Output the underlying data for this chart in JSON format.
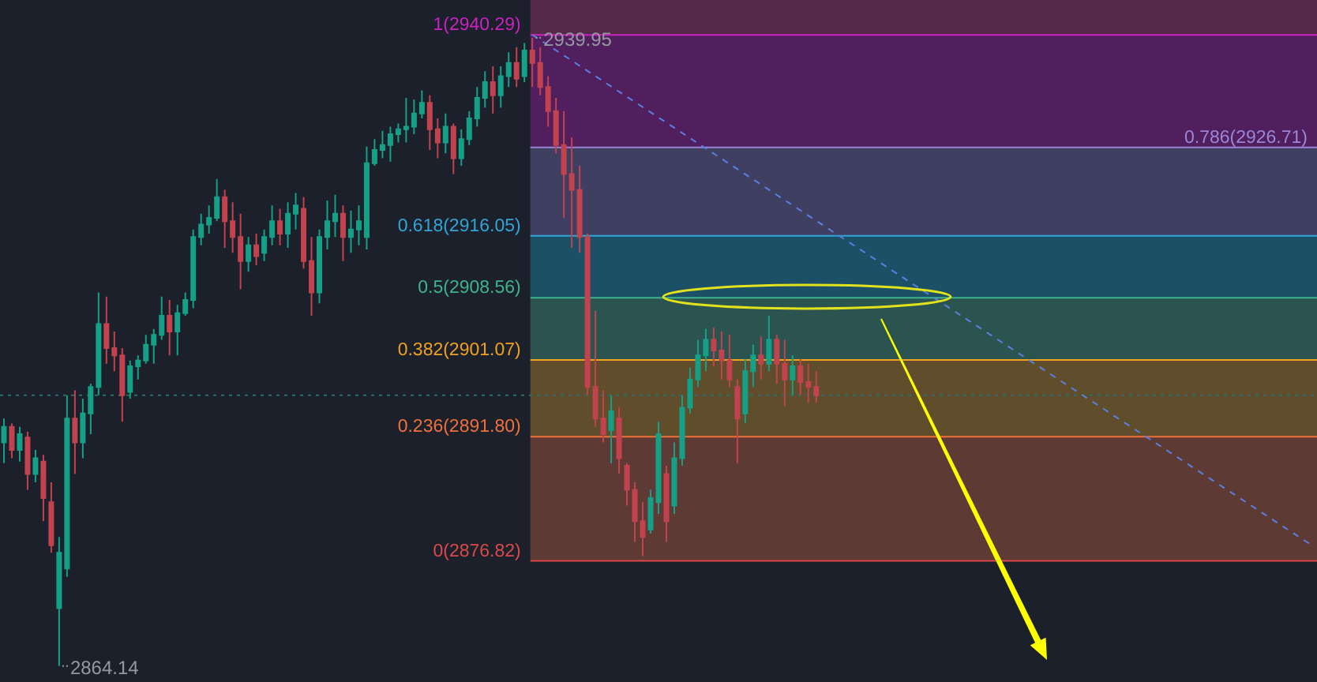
{
  "chart_data": {
    "type": "candlestick",
    "categories": [
      null,
      null,
      null,
      null,
      null,
      null,
      null,
      null,
      null,
      null,
      null,
      null,
      null,
      null,
      null,
      null,
      null,
      null,
      null,
      null,
      null,
      null,
      null,
      null,
      null,
      null,
      null,
      null,
      null,
      null,
      null,
      null,
      null,
      null,
      null,
      null,
      null,
      null,
      null,
      null,
      null,
      null,
      null,
      null,
      null,
      null,
      null,
      null,
      null,
      null,
      null,
      null,
      null,
      null,
      null,
      null,
      null,
      null,
      null,
      null,
      null,
      null,
      null,
      null,
      null,
      null,
      null,
      null,
      null,
      null,
      null,
      null,
      null,
      null,
      null,
      null,
      null,
      null,
      null,
      null,
      null,
      null,
      null,
      null,
      null,
      null,
      null,
      null,
      null,
      null,
      null,
      null,
      null,
      null,
      null,
      null,
      null,
      null,
      null,
      null,
      null,
      null,
      null,
      null,
      null,
      null,
      null,
      null,
      null,
      null,
      null,
      null,
      null,
      null,
      null,
      null,
      null,
      null,
      null,
      null,
      null,
      null,
      null,
      null,
      null,
      null,
      null,
      null,
      null,
      null,
      null,
      null,
      null,
      null,
      null,
      null,
      null,
      null,
      null,
      null,
      null,
      null,
      null,
      null,
      null,
      null,
      null,
      null,
      null,
      null,
      null,
      null,
      null,
      null,
      null,
      null,
      null,
      null,
      null,
      null,
      null,
      null,
      null,
      null,
      null,
      null,
      null
    ],
    "ohlc": [
      [
        2891.1,
        2894.0,
        2888.6,
        2893.0
      ],
      [
        2893.0,
        2893.4,
        2889.2,
        2890.2
      ],
      [
        2890.2,
        2893.0,
        2888.8,
        2892.1
      ],
      [
        2891.7,
        2892.4,
        2885.4,
        2887.3
      ],
      [
        2887.3,
        2890.2,
        2886.3,
        2889.2
      ],
      [
        2888.8,
        2889.6,
        2881.6,
        2884.4
      ],
      [
        2883.9,
        2886.3,
        2877.8,
        2878.7
      ],
      [
        2871.1,
        2879.7,
        2864.14,
        2877.8
      ],
      [
        2875.9,
        2896.8,
        2874.9,
        2894.0
      ],
      [
        2894.0,
        2897.4,
        2887.3,
        2891.1
      ],
      [
        2891.1,
        2896.4,
        2889.2,
        2894.6
      ],
      [
        2894.6,
        2898.2,
        2892.1,
        2897.8
      ],
      [
        2897.8,
        2909.2,
        2896.8,
        2905.4
      ],
      [
        2905.4,
        2908.7,
        2900.6,
        2902.5
      ],
      [
        2902.5,
        2904.5,
        2899.7,
        2901.6
      ],
      [
        2901.6,
        2902.5,
        2893.6,
        2896.8
      ],
      [
        2897.2,
        2901.0,
        2896.4,
        2900.3
      ],
      [
        2900.3,
        2901.6,
        2898.7,
        2901.0
      ],
      [
        2901.0,
        2904.1,
        2900.6,
        2902.9
      ],
      [
        2902.9,
        2904.8,
        2900.6,
        2904.1
      ],
      [
        2904.1,
        2908.7,
        2903.5,
        2906.4
      ],
      [
        2906.4,
        2908.3,
        2901.6,
        2904.5
      ],
      [
        2904.5,
        2907.7,
        2901.6,
        2906.7
      ],
      [
        2906.7,
        2909.2,
        2906.4,
        2908.3
      ],
      [
        2908.3,
        2916.8,
        2907.3,
        2915.9
      ],
      [
        2915.9,
        2918.7,
        2914.9,
        2917.4
      ],
      [
        2917.4,
        2919.7,
        2916.3,
        2918.2
      ],
      [
        2918.2,
        2922.9,
        2917.8,
        2920.7
      ],
      [
        2920.7,
        2921.6,
        2914.6,
        2917.8
      ],
      [
        2917.8,
        2920.1,
        2914.0,
        2915.9
      ],
      [
        2915.9,
        2918.7,
        2909.6,
        2913.0
      ],
      [
        2913.0,
        2915.9,
        2911.7,
        2914.9
      ],
      [
        2914.9,
        2916.3,
        2912.5,
        2913.6
      ],
      [
        2914.0,
        2916.8,
        2913.0,
        2915.9
      ],
      [
        2915.9,
        2919.7,
        2914.9,
        2917.8
      ],
      [
        2917.8,
        2919.3,
        2914.9,
        2916.3
      ],
      [
        2916.3,
        2920.1,
        2914.6,
        2918.7
      ],
      [
        2918.7,
        2921.2,
        2916.8,
        2919.7
      ],
      [
        2919.3,
        2920.7,
        2912.1,
        2913.0
      ],
      [
        2913.0,
        2915.9,
        2906.4,
        2909.2
      ],
      [
        2909.2,
        2916.8,
        2907.9,
        2915.9
      ],
      [
        2915.9,
        2920.3,
        2914.4,
        2917.8
      ],
      [
        2917.8,
        2921.0,
        2915.9,
        2918.7
      ],
      [
        2918.7,
        2919.7,
        2913.0,
        2915.9
      ],
      [
        2915.9,
        2919.1,
        2914.0,
        2916.8
      ],
      [
        2916.8,
        2919.7,
        2914.9,
        2917.8
      ],
      [
        2915.9,
        2926.8,
        2914.4,
        2924.8
      ],
      [
        2924.8,
        2927.7,
        2924.5,
        2926.4
      ],
      [
        2926.4,
        2928.7,
        2925.4,
        2927.0
      ],
      [
        2927.0,
        2929.2,
        2925.0,
        2928.3
      ],
      [
        2928.3,
        2929.6,
        2927.3,
        2928.9
      ],
      [
        2928.9,
        2932.7,
        2927.3,
        2929.2
      ],
      [
        2929.2,
        2932.5,
        2928.3,
        2930.8
      ],
      [
        2930.8,
        2933.6,
        2930.2,
        2932.1
      ],
      [
        2932.1,
        2933.0,
        2926.4,
        2928.9
      ],
      [
        2928.9,
        2930.2,
        2925.4,
        2927.3
      ],
      [
        2927.3,
        2930.8,
        2926.0,
        2929.2
      ],
      [
        2929.2,
        2929.6,
        2923.5,
        2925.4
      ],
      [
        2925.4,
        2928.9,
        2924.5,
        2927.7
      ],
      [
        2927.7,
        2931.1,
        2927.0,
        2930.2
      ],
      [
        2930.2,
        2934.0,
        2929.2,
        2932.7
      ],
      [
        2932.7,
        2935.9,
        2931.5,
        2934.6
      ],
      [
        2934.6,
        2936.5,
        2930.8,
        2933.0
      ],
      [
        2933.0,
        2936.5,
        2931.5,
        2935.3
      ],
      [
        2935.3,
        2938.2,
        2934.0,
        2936.9
      ],
      [
        2936.9,
        2938.8,
        2934.0,
        2935.0
      ],
      [
        2935.3,
        2939.3,
        2934.6,
        2938.4
      ],
      [
        2938.4,
        2939.95,
        2934.0,
        2936.9
      ],
      [
        2936.9,
        2938.8,
        2933.0,
        2934.0
      ],
      [
        2934.0,
        2935.3,
        2929.2,
        2931.1
      ],
      [
        2931.1,
        2932.7,
        2926.0,
        2927.0
      ],
      [
        2927.0,
        2931.1,
        2918.2,
        2923.5
      ],
      [
        2923.5,
        2927.9,
        2914.6,
        2921.6
      ],
      [
        2921.6,
        2924.5,
        2914.0,
        2915.9
      ],
      [
        2915.9,
        2916.3,
        2896.8,
        2897.8
      ],
      [
        2897.8,
        2907.0,
        2893.0,
        2894.0
      ],
      [
        2894.0,
        2897.4,
        2891.1,
        2892.1
      ],
      [
        2892.6,
        2896.8,
        2888.6,
        2894.9
      ],
      [
        2894.0,
        2895.3,
        2887.3,
        2889.2
      ],
      [
        2888.3,
        2888.6,
        2883.5,
        2885.4
      ],
      [
        2885.4,
        2886.3,
        2879.1,
        2881.6
      ],
      [
        2881.6,
        2883.9,
        2877.4,
        2879.7
      ],
      [
        2880.6,
        2885.4,
        2880.1,
        2884.4
      ],
      [
        2883.9,
        2893.6,
        2882.5,
        2892.1
      ],
      [
        2887.3,
        2888.3,
        2879.1,
        2881.6
      ],
      [
        2883.5,
        2891.1,
        2882.5,
        2889.2
      ],
      [
        2889.2,
        2896.8,
        2888.3,
        2895.3
      ],
      [
        2895.3,
        2900.1,
        2894.6,
        2898.7
      ],
      [
        2898.7,
        2903.5,
        2897.8,
        2901.6
      ],
      [
        2901.6,
        2904.8,
        2899.7,
        2903.5
      ],
      [
        2903.5,
        2905.0,
        2900.3,
        2902.2
      ],
      [
        2902.2,
        2904.5,
        2898.7,
        2901.0
      ],
      [
        2901.0,
        2904.1,
        2897.8,
        2898.7
      ],
      [
        2897.8,
        2898.7,
        2888.6,
        2894.0
      ],
      [
        2894.6,
        2901.2,
        2893.4,
        2899.7
      ],
      [
        2899.7,
        2902.9,
        2897.8,
        2901.6
      ],
      [
        2901.6,
        2903.9,
        2898.7,
        2900.6
      ],
      [
        2900.6,
        2906.4,
        2899.7,
        2903.5
      ],
      [
        2903.5,
        2904.1,
        2898.2,
        2900.6
      ],
      [
        2900.6,
        2903.5,
        2895.5,
        2898.7
      ],
      [
        2898.7,
        2901.6,
        2896.8,
        2900.3
      ],
      [
        2900.3,
        2901.2,
        2896.8,
        2898.4
      ],
      [
        2898.4,
        2900.6,
        2895.9,
        2897.8
      ],
      [
        2897.8,
        2899.7,
        2895.9,
        2896.8
      ],
      null,
      null,
      null,
      null,
      null,
      null,
      null,
      null,
      null,
      null,
      null,
      null,
      null,
      null,
      null,
      null,
      null,
      null,
      null,
      null,
      null,
      null,
      null,
      null,
      null,
      null,
      null,
      null,
      null,
      null,
      null,
      null,
      null,
      null,
      null,
      null,
      null,
      null,
      null,
      null,
      null,
      null,
      null,
      null,
      null,
      null,
      null,
      null,
      null,
      null,
      null,
      null,
      null,
      null,
      null,
      null,
      null,
      null,
      null,
      null,
      null,
      null,
      null
    ],
    "value_labels": [
      null,
      null,
      null,
      null,
      null,
      null,
      null,
      "2864.14",
      null,
      null,
      null,
      null,
      null,
      null,
      null,
      null,
      null,
      null,
      null,
      null,
      null,
      null,
      null,
      null,
      null,
      null,
      null,
      null,
      null,
      null,
      null,
      null,
      null,
      null,
      null,
      null,
      null,
      null,
      null,
      null,
      null,
      null,
      null,
      null,
      null,
      null,
      null,
      null,
      null,
      null,
      null,
      null,
      null,
      null,
      null,
      null,
      null,
      null,
      null,
      null,
      null,
      null,
      null,
      null,
      null,
      null,
      null,
      "2939.95",
      null,
      null,
      null,
      null,
      null,
      null,
      null,
      null,
      null,
      null,
      null,
      null,
      null,
      null,
      null,
      null,
      null,
      null,
      null,
      null,
      null,
      null,
      null,
      null,
      null,
      null,
      null,
      null,
      null,
      null,
      null,
      null,
      null,
      null,
      null,
      null,
      null,
      null,
      null,
      null,
      null,
      null,
      null,
      null,
      null,
      null,
      null,
      null,
      null,
      null,
      null,
      null,
      null,
      null,
      null,
      null,
      null,
      null,
      null,
      null,
      null,
      null,
      null,
      null,
      null,
      null,
      null,
      null,
      null,
      null,
      null,
      null,
      null,
      null,
      null,
      null,
      null,
      null,
      null,
      null,
      null,
      null,
      null,
      null,
      null,
      null,
      null,
      null,
      null,
      null,
      null,
      null,
      null,
      null,
      null,
      null,
      null,
      null,
      null
    ],
    "colors": [
      "#15a087",
      "#c2434f",
      "#15a087",
      "#c2434f",
      "#15a087",
      "#c2434f",
      "#c2434f",
      "#15a087",
      "#15a087",
      "#c2434f",
      "#15a087",
      "#15a087",
      "#15a087",
      "#c2434f",
      "#c2434f",
      "#c2434f",
      "#15a087",
      "#15a087",
      "#15a087",
      "#15a087",
      "#15a087",
      "#c2434f",
      "#15a087",
      "#15a087",
      "#15a087",
      "#15a087",
      "#15a087",
      "#15a087",
      "#c2434f",
      "#c2434f",
      "#c2434f",
      "#15a087",
      "#c2434f",
      "#15a087",
      "#15a087",
      "#c2434f",
      "#15a087",
      "#15a087",
      "#c2434f",
      "#c2434f",
      "#15a087",
      "#15a087",
      "#15a087",
      "#c2434f",
      "#15a087",
      "#15a087",
      "#15a087",
      "#15a087",
      "#15a087",
      "#15a087",
      "#15a087",
      "#15a087",
      "#15a087",
      "#15a087",
      "#c2434f",
      "#c2434f",
      "#15a087",
      "#c2434f",
      "#15a087",
      "#15a087",
      "#15a087",
      "#15a087",
      "#c2434f",
      "#15a087",
      "#15a087",
      "#c2434f",
      "#15a087",
      "#c2434f",
      "#c2434f",
      "#c2434f",
      "#c2434f",
      "#c2434f",
      "#c2434f",
      "#c2434f",
      "#c2434f",
      "#c2434f",
      "#c2434f",
      "#15a087",
      "#c2434f",
      "#c2434f",
      "#c2434f",
      "#c2434f",
      "#15a087",
      "#15a087",
      "#c2434f",
      "#15a087",
      "#15a087",
      "#15a087",
      "#15a087",
      "#15a087",
      "#c2434f",
      "#c2434f",
      "#c2434f",
      "#c2434f",
      "#15a087",
      "#15a087",
      "#c2434f",
      "#15a087",
      "#c2434f",
      "#c2434f",
      "#15a087",
      "#c2434f",
      "#c2434f",
      "#c2434f",
      null,
      null,
      null,
      null,
      null,
      null,
      null,
      null,
      null,
      null,
      null,
      null,
      null,
      null,
      null,
      null,
      null,
      null,
      null,
      null,
      null,
      null,
      null,
      null,
      null,
      null,
      null,
      null,
      null,
      null,
      null,
      null,
      null,
      null,
      null,
      null,
      null,
      null,
      null,
      null,
      null,
      null,
      null,
      null,
      null,
      null,
      null,
      null,
      null,
      null,
      null,
      null,
      null,
      null,
      null,
      null,
      null,
      null,
      null,
      null,
      null,
      null,
      null
    ],
    "series": [
      {
        "type": "line",
        "color": "#5b7fe0",
        "line_style": "dashed",
        "values": [
          null,
          null,
          null,
          null,
          null,
          null,
          null,
          null,
          null,
          null,
          null,
          null,
          null,
          null,
          null,
          null,
          null,
          null,
          null,
          null,
          null,
          null,
          null,
          null,
          null,
          null,
          null,
          null,
          null,
          null,
          null,
          null,
          null,
          null,
          null,
          null,
          null,
          null,
          null,
          null,
          null,
          null,
          null,
          null,
          null,
          null,
          null,
          null,
          null,
          null,
          null,
          null,
          null,
          null,
          null,
          null,
          null,
          null,
          null,
          null,
          null,
          null,
          null,
          null,
          null,
          null,
          null,
          2940.3,
          null,
          null,
          null,
          null,
          null,
          null,
          null,
          null,
          null,
          null,
          null,
          null,
          null,
          null,
          null,
          null,
          null,
          null,
          null,
          null,
          null,
          null,
          null,
          null,
          null,
          null,
          null,
          null,
          null,
          null,
          null,
          null,
          null,
          null,
          null,
          null,
          null,
          null,
          null,
          null,
          null,
          null,
          null,
          null,
          null,
          null,
          null,
          null,
          null,
          null,
          null,
          null,
          null,
          null,
          null,
          null,
          null,
          null,
          null,
          null,
          null,
          null,
          null,
          null,
          null,
          null,
          null,
          null,
          null,
          null,
          null,
          null,
          null,
          null,
          null,
          null,
          null,
          null,
          null,
          null,
          null,
          null,
          null,
          null,
          null,
          null,
          null,
          null,
          null,
          null,
          null,
          null,
          null,
          null,
          null,
          null,
          null,
          null,
          2878.6
        ]
      }
    ],
    "ylim": [
      2862.2,
      2944.5
    ],
    "bands": [
      {
        "axis": "y",
        "from": 2940.29,
        "to": 2944.5,
        "color": "#56294b"
      },
      {
        "axis": "y",
        "from": 2926.71,
        "to": 2940.29,
        "color": "#521f5e"
      },
      {
        "axis": "y",
        "from": 2916.05,
        "to": 2926.71,
        "color": "#3f3f62"
      },
      {
        "axis": "y",
        "from": 2908.56,
        "to": 2916.05,
        "color": "#1b5066"
      },
      {
        "axis": "y",
        "from": 2901.07,
        "to": 2908.56,
        "color": "#2b5450"
      },
      {
        "axis": "y",
        "from": 2891.8,
        "to": 2901.07,
        "color": "#5f4d2b"
      },
      {
        "axis": "y",
        "from": 2876.82,
        "to": 2891.8,
        "color": "#5e3a35"
      }
    ],
    "ref_lines": [
      {
        "axis": "y",
        "value": 2940.29,
        "label": "1(2940.29)",
        "color": "#c824c0"
      },
      {
        "axis": "y",
        "value": 2926.71,
        "label": "0.786(2926.71)",
        "color": "#9c86d8"
      },
      {
        "axis": "y",
        "value": 2916.05,
        "label": "0.618(2916.05)",
        "color": "#2fa6d6"
      },
      {
        "axis": "y",
        "value": 2908.56,
        "label": "0.5(2908.56)",
        "color": "#3db48c"
      },
      {
        "axis": "y",
        "value": 2901.07,
        "label": "0.382(2901.07)",
        "color": "#f0a21e"
      },
      {
        "axis": "y",
        "value": 2891.8,
        "label": "0.236(2891.80)",
        "color": "#f07038"
      },
      {
        "axis": "y",
        "value": 2876.82,
        "label": "0(2876.82)",
        "color": "#dd4848"
      },
      {
        "axis": "y",
        "value": 2896.8,
        "color": "#2a6e69",
        "line_style": "dotted"
      }
    ]
  }
}
